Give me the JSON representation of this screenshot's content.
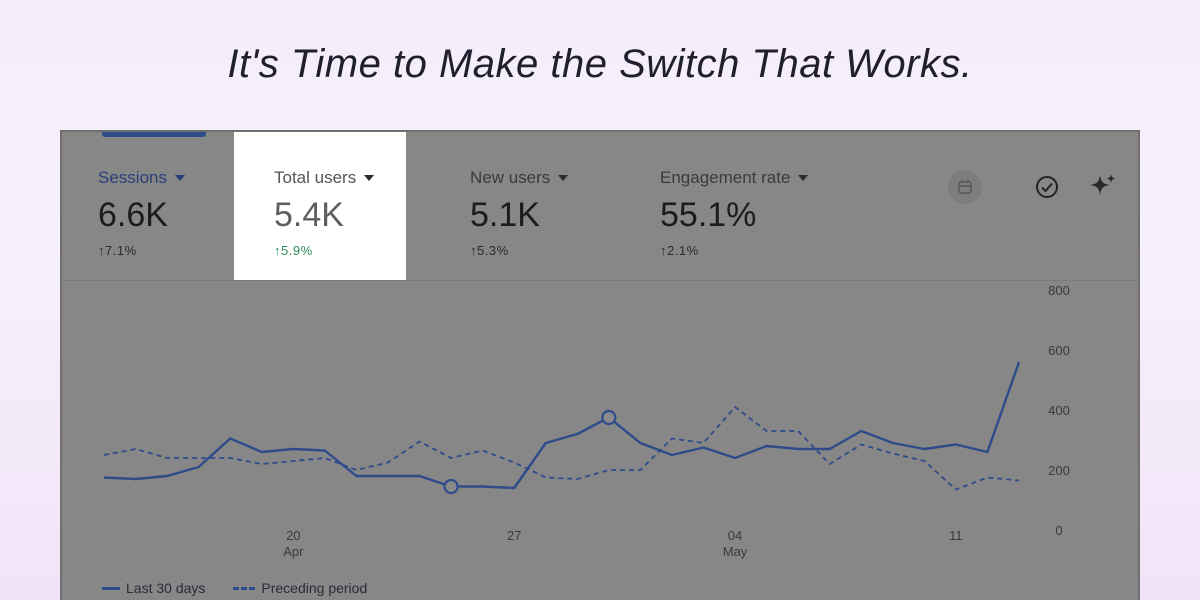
{
  "page": {
    "subtitle": "It's Time to Make the Switch That Works."
  },
  "metrics": [
    {
      "label": "Sessions",
      "value": "6.6K",
      "change": "↑7.1%"
    },
    {
      "label": "Total users",
      "value": "5.4K",
      "change": "↑5.9%"
    },
    {
      "label": "New users",
      "value": "5.1K",
      "change": "↑5.3%"
    },
    {
      "label": "Engagement rate",
      "value": "55.1%",
      "change": "↑2.1%"
    }
  ],
  "toolbar": {
    "icons": [
      "compare-icon",
      "check-circle-icon",
      "sparkle-icon"
    ]
  },
  "colors": {
    "line": "#2e4b8a",
    "panel": "#878787",
    "selected_bg": "#ffffff",
    "positive": "#2e8b57"
  },
  "chart_data": {
    "type": "line",
    "ylim": [
      0,
      800
    ],
    "y_ticks": [
      "800",
      "600",
      "400",
      "200",
      "0"
    ],
    "x_ticks": [
      {
        "day": 6,
        "label": "20",
        "sub": "Apr"
      },
      {
        "day": 13,
        "label": "27",
        "sub": ""
      },
      {
        "day": 20,
        "label": "04",
        "sub": "May"
      },
      {
        "day": 27,
        "label": "11",
        "sub": ""
      }
    ],
    "series": [
      {
        "name": "Last 30 days",
        "style": "solid",
        "values": [
          175,
          170,
          180,
          210,
          305,
          260,
          270,
          265,
          180,
          180,
          180,
          145,
          145,
          140,
          290,
          320,
          375,
          290,
          250,
          275,
          240,
          280,
          270,
          270,
          330,
          290,
          270,
          285,
          260,
          560
        ]
      },
      {
        "name": "Preceding period",
        "style": "dashed",
        "values": [
          250,
          270,
          240,
          240,
          240,
          220,
          230,
          240,
          200,
          225,
          295,
          240,
          265,
          225,
          175,
          170,
          200,
          200,
          305,
          290,
          410,
          330,
          330,
          220,
          285,
          255,
          230,
          135,
          175,
          165
        ]
      }
    ],
    "markers": [
      {
        "series": 0,
        "index": 11
      },
      {
        "series": 0,
        "index": 16
      }
    ],
    "legend": [
      "Last 30 days",
      "Preceding period"
    ]
  }
}
